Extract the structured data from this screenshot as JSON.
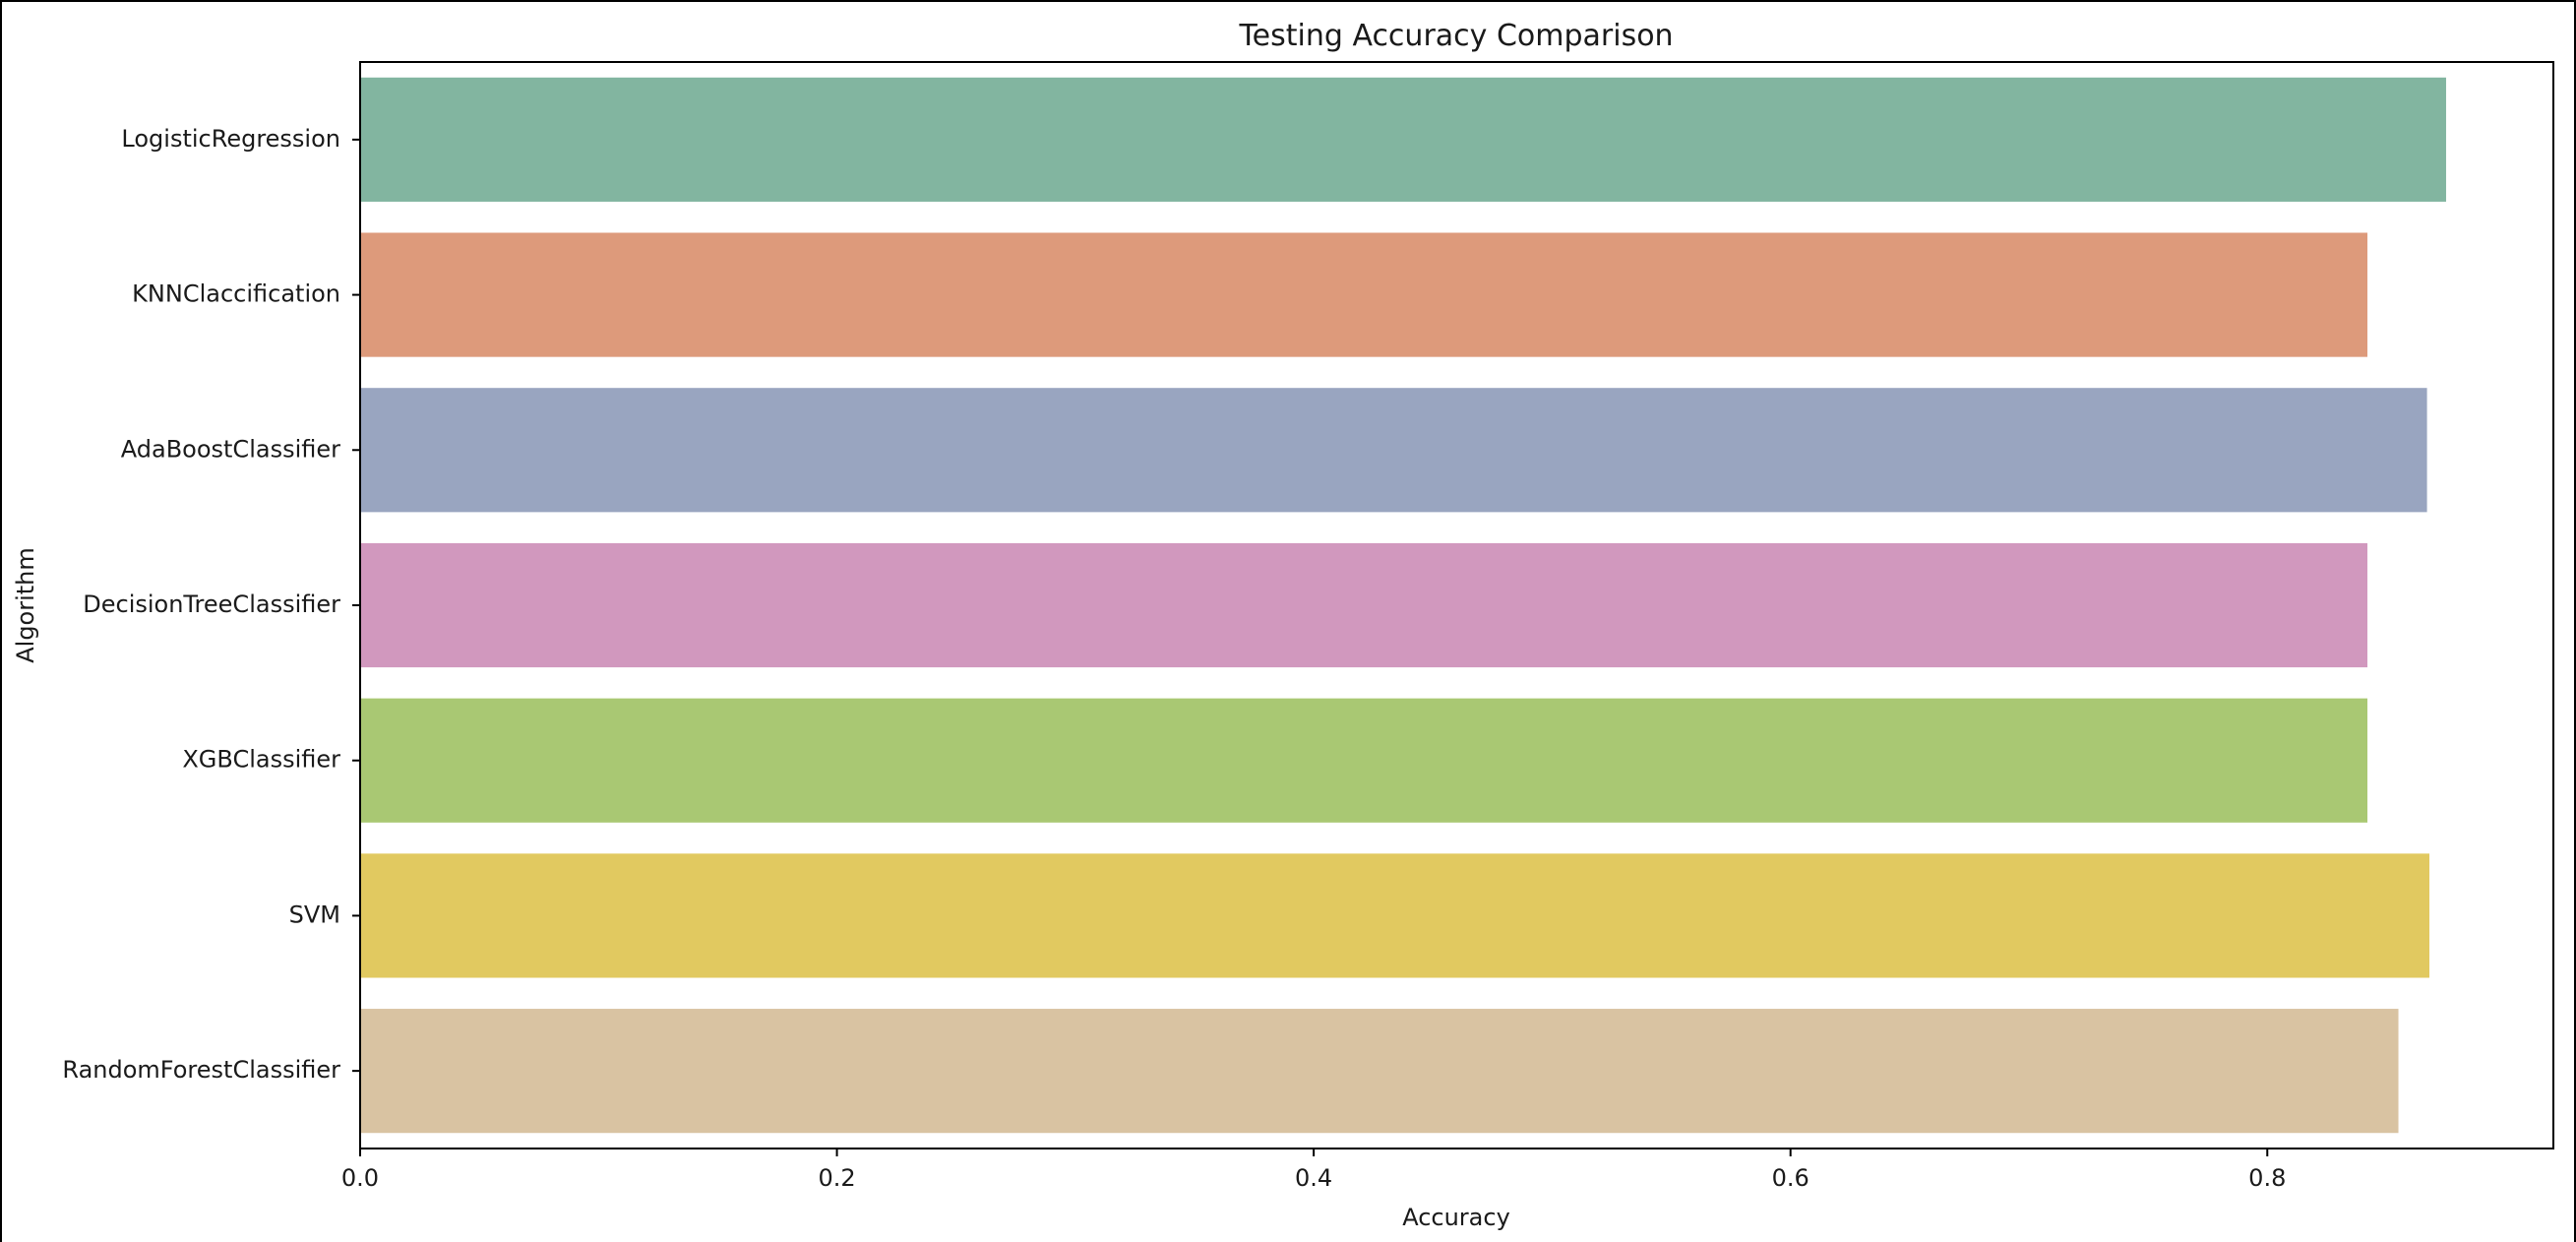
{
  "chart_data": {
    "type": "bar",
    "orientation": "horizontal",
    "title": "Testing Accuracy Comparison",
    "xlabel": "Accuracy",
    "ylabel": "Algorithm",
    "categories": [
      "LogisticRegression",
      "KNNClaccification",
      "AdaBoostClassifier",
      "DecisionTreeClassifier",
      "XGBClassifier",
      "SVM",
      "RandomForestClassifier"
    ],
    "values": [
      0.875,
      0.842,
      0.867,
      0.842,
      0.842,
      0.868,
      0.855
    ],
    "colors": [
      "#82b5a0",
      "#dd9a7b",
      "#99a5c0",
      "#d198be",
      "#a9c873",
      "#e1c960",
      "#d9c3a2"
    ],
    "xlim": [
      0,
      0.92
    ],
    "xticks": [
      0.0,
      0.2,
      0.4,
      0.6,
      0.8
    ],
    "xtick_labels": [
      "0.0",
      "0.2",
      "0.4",
      "0.6",
      "0.8"
    ],
    "grid": false,
    "legend": false
  }
}
